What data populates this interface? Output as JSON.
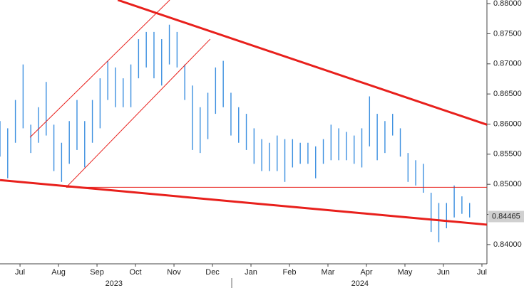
{
  "chart_data": {
    "type": "ohlc",
    "bar_color": "#3b8fe0",
    "xlim": [
      -0.52,
      12.13
    ],
    "ylim": [
      0.8368,
      0.8806
    ],
    "xticks": [
      {
        "value": 0,
        "label": "Jul"
      },
      {
        "value": 1,
        "label": "Aug"
      },
      {
        "value": 2,
        "label": "Sep"
      },
      {
        "value": 3,
        "label": "Oct"
      },
      {
        "value": 4,
        "label": "Nov"
      },
      {
        "value": 5,
        "label": "Dec"
      },
      {
        "value": 6,
        "label": "Jan"
      },
      {
        "value": 7,
        "label": "Feb"
      },
      {
        "value": 8,
        "label": "Mar"
      },
      {
        "value": 9,
        "label": "Apr"
      },
      {
        "value": 10,
        "label": "May"
      },
      {
        "value": 11,
        "label": "Jun"
      },
      {
        "value": 12,
        "label": "Jul"
      }
    ],
    "year_labels": [
      {
        "x": 2.44,
        "label": "2023"
      },
      {
        "x": 8.83,
        "label": "2024"
      }
    ],
    "yticks": [
      {
        "value": 0.84,
        "label": "0.84000"
      },
      {
        "value": 0.845,
        "label": "0.84500"
      },
      {
        "value": 0.85,
        "label": "0.85000"
      },
      {
        "value": 0.855,
        "label": "0.85500"
      },
      {
        "value": 0.86,
        "label": "0.86000"
      },
      {
        "value": 0.865,
        "label": "0.86500"
      },
      {
        "value": 0.87,
        "label": "0.87000"
      },
      {
        "value": 0.875,
        "label": "0.87500"
      },
      {
        "value": 0.88,
        "label": "0.88000"
      }
    ],
    "last_price": 0.84465,
    "x": [
      -0.52,
      -0.32,
      -0.12,
      0.08,
      0.28,
      0.48,
      0.68,
      0.88,
      1.08,
      1.28,
      1.48,
      1.68,
      1.88,
      2.08,
      2.28,
      2.48,
      2.68,
      2.88,
      3.08,
      3.28,
      3.48,
      3.68,
      3.88,
      4.08,
      4.28,
      4.48,
      4.68,
      4.88,
      5.08,
      5.28,
      5.48,
      5.68,
      5.88,
      6.08,
      6.28,
      6.48,
      6.68,
      6.88,
      7.08,
      7.28,
      7.48,
      7.68,
      7.88,
      8.08,
      8.28,
      8.48,
      8.68,
      8.88,
      9.08,
      9.28,
      9.48,
      9.68,
      9.88,
      10.08,
      10.28,
      10.48,
      10.68,
      10.88,
      11.08,
      11.28,
      11.48,
      11.68
    ],
    "high": [
      0.8605,
      0.8593,
      0.864,
      0.8699,
      0.8599,
      0.8628,
      0.867,
      0.8599,
      0.8569,
      0.8605,
      0.864,
      0.8605,
      0.864,
      0.8676,
      0.8705,
      0.8694,
      0.8676,
      0.8699,
      0.8741,
      0.8753,
      0.8753,
      0.8741,
      0.8765,
      0.8753,
      0.8699,
      0.8664,
      0.8628,
      0.8652,
      0.8694,
      0.8705,
      0.8652,
      0.8628,
      0.8617,
      0.8593,
      0.8575,
      0.8569,
      0.8581,
      0.8575,
      0.8575,
      0.8569,
      0.8569,
      0.8563,
      0.8575,
      0.8599,
      0.8593,
      0.8587,
      0.8581,
      0.8593,
      0.8646,
      0.8617,
      0.8605,
      0.8617,
      0.8593,
      0.8552,
      0.854,
      0.8534,
      0.8486,
      0.8469,
      0.8469,
      0.8498,
      0.848,
      0.8469
    ],
    "low": [
      0.8546,
      0.851,
      0.8569,
      0.8593,
      0.8552,
      0.8569,
      0.8581,
      0.8522,
      0.8504,
      0.8534,
      0.8557,
      0.8528,
      0.8569,
      0.8593,
      0.864,
      0.8628,
      0.8628,
      0.8628,
      0.8676,
      0.8694,
      0.8676,
      0.8664,
      0.8699,
      0.8694,
      0.864,
      0.8557,
      0.8552,
      0.8575,
      0.8617,
      0.8628,
      0.8581,
      0.8569,
      0.8557,
      0.8534,
      0.8522,
      0.8522,
      0.8522,
      0.8504,
      0.8528,
      0.8534,
      0.8534,
      0.851,
      0.8534,
      0.854,
      0.854,
      0.854,
      0.8534,
      0.8528,
      0.8563,
      0.854,
      0.8552,
      0.8581,
      0.8546,
      0.8504,
      0.8498,
      0.8486,
      0.8421,
      0.8404,
      0.8427,
      0.8445,
      0.8451,
      0.8445
    ],
    "lines": [
      {
        "color": "#e8201c",
        "width": 3,
        "x": [
          2.54,
          12.13
        ],
        "values": [
          0.8806,
          0.8599
        ]
      },
      {
        "color": "#e8201c",
        "width": 3,
        "x": [
          -0.52,
          12.13
        ],
        "values": [
          0.8507,
          0.8433
        ]
      },
      {
        "color": "#e8201c",
        "width": 1,
        "x": [
          1.2,
          12.13
        ],
        "values": [
          0.8495,
          0.8495
        ]
      },
      {
        "color": "#e8201c",
        "width": 1,
        "x": [
          0.26,
          3.89
        ],
        "values": [
          0.8578,
          0.8806
        ]
      },
      {
        "color": "#e8201c",
        "width": 1,
        "x": [
          1.2,
          4.94
        ],
        "values": [
          0.8495,
          0.8741
        ]
      }
    ]
  }
}
